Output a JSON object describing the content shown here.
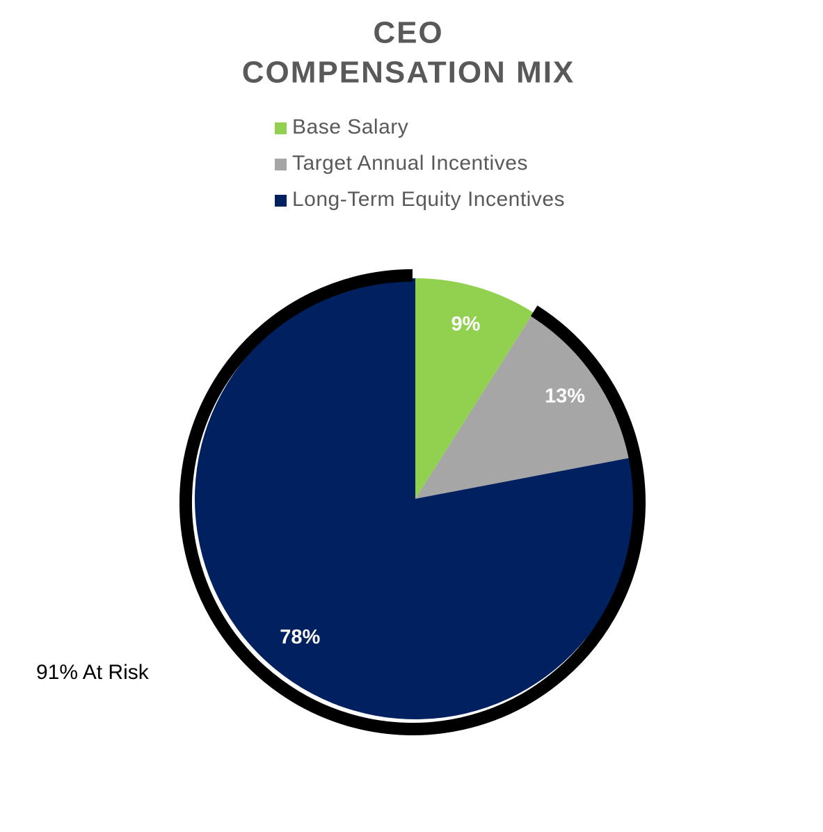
{
  "chart_data": {
    "type": "pie",
    "title": [
      "CEO",
      "COMPENSATION MIX"
    ],
    "categories": [
      "Base Salary",
      "Target Annual Incentives",
      "Long-Term Equity Incentives"
    ],
    "values": [
      9,
      13,
      78
    ],
    "value_labels": [
      "9%",
      "13%",
      "78%"
    ],
    "colors": [
      "#92d050",
      "#a6a6a6",
      "#002060"
    ],
    "annotation": "91% At Risk",
    "legend": "top"
  }
}
